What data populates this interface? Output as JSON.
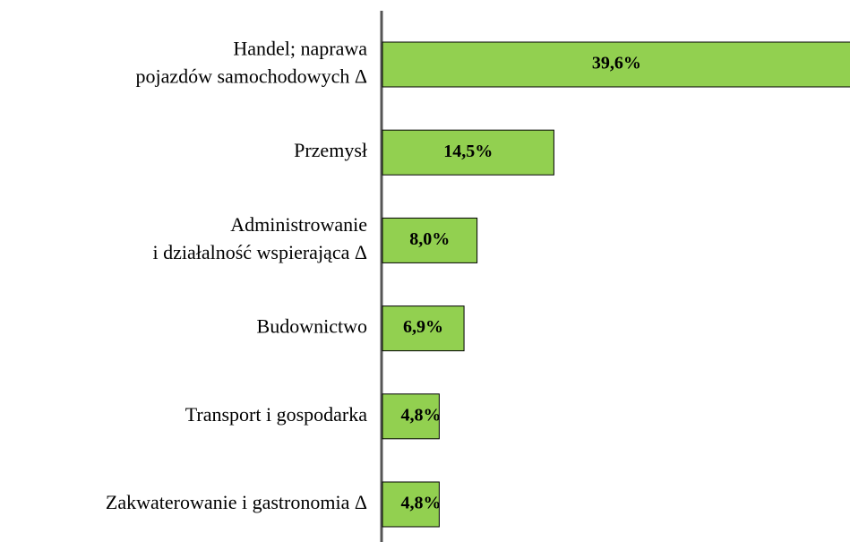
{
  "chart_data": {
    "type": "bar",
    "orientation": "horizontal",
    "categories": [
      [
        "Handel; naprawa",
        "pojazdów samochodowych Δ"
      ],
      [
        "Przemysł"
      ],
      [
        "Administrowanie",
        "i działalność wspierająca Δ"
      ],
      [
        "Budownictwo"
      ],
      [
        "Transport i gospodarka"
      ],
      [
        "Zakwaterowanie i gastronomia Δ"
      ]
    ],
    "values": [
      39.6,
      14.5,
      8.0,
      6.9,
      4.8,
      4.8
    ],
    "value_labels": [
      "39,6%",
      "14,5%",
      "8,0%",
      "6,9%",
      "4,8%",
      "4,8%"
    ],
    "color": "#92d050"
  }
}
